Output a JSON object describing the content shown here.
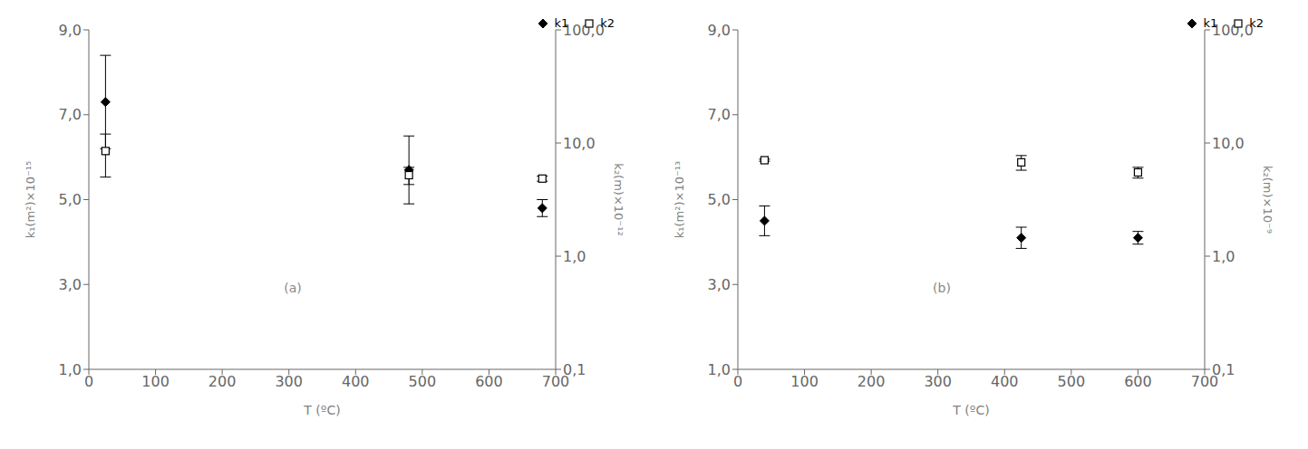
{
  "chart_data": [
    {
      "type": "scatter",
      "annotations": [
        {
          "text": "(a)"
        }
      ],
      "xlabel": "T (ºC)",
      "ylabel": "k₁(m²)×10⁻¹⁵",
      "y2label": "k₂(m)×10⁻¹²",
      "xlim": [
        0,
        700
      ],
      "xticks": [
        0,
        100,
        200,
        300,
        400,
        500,
        600,
        700
      ],
      "ylim": [
        1.0,
        9.0
      ],
      "yticks": [
        {
          "value": 1.0,
          "label": "1,0"
        },
        {
          "value": 3.0,
          "label": "3,0"
        },
        {
          "value": 5.0,
          "label": "5,0"
        },
        {
          "value": 7.0,
          "label": "7,0"
        },
        {
          "value": 9.0,
          "label": "9,0"
        }
      ],
      "y2lim": [
        0.1,
        100.0
      ],
      "y2ticks": [
        {
          "value": 0.1,
          "label": "0,1"
        },
        {
          "value": 1.0,
          "label": "1,0"
        },
        {
          "value": 10.0,
          "label": "10,0"
        },
        {
          "value": 100.0,
          "label": "100,0"
        }
      ],
      "log": "y2",
      "legend": "upper right",
      "grid": false,
      "series": [
        {
          "name": "k1",
          "color": "#000000",
          "marker": "diamond",
          "x": [
            25,
            480,
            680
          ],
          "values": [
            7.3,
            5.7,
            4.8
          ],
          "error_low": [
            1.1,
            0.8,
            0.2
          ],
          "error_high": [
            1.1,
            0.8,
            0.2
          ]
        },
        {
          "name": "k2",
          "axis": "y2",
          "color": "#000000",
          "marker": "hollow_square",
          "x": [
            25,
            480,
            680
          ],
          "values": [
            8.5,
            5.2,
            4.85
          ],
          "error_low": [
            3.5,
            0.9,
            0.25
          ],
          "error_high": [
            3.5,
            0.9,
            0.25
          ]
        }
      ]
    },
    {
      "type": "scatter",
      "annotations": [
        {
          "text": "(b)"
        }
      ],
      "xlabel": "T (ºC)",
      "ylabel": "k₁(m²)×10⁻¹³",
      "y2label": "k₂(m)×10⁻⁹",
      "xlim": [
        0,
        700
      ],
      "xticks": [
        0,
        100,
        200,
        300,
        400,
        500,
        600,
        700
      ],
      "ylim": [
        1.0,
        9.0
      ],
      "yticks": [
        {
          "value": 1.0,
          "label": "1,0"
        },
        {
          "value": 3.0,
          "label": "3,0"
        },
        {
          "value": 5.0,
          "label": "5,0"
        },
        {
          "value": 7.0,
          "label": "7,0"
        },
        {
          "value": 9.0,
          "label": "9,0"
        }
      ],
      "y2lim": [
        0.1,
        100.0
      ],
      "y2ticks": [
        {
          "value": 0.1,
          "label": "0,1"
        },
        {
          "value": 1.0,
          "label": "1,0"
        },
        {
          "value": 10.0,
          "label": "10,0"
        },
        {
          "value": 100.0,
          "label": "100,0"
        }
      ],
      "log": "y2",
      "legend": "upper right",
      "grid": false,
      "series": [
        {
          "name": "k1",
          "color": "#000000",
          "marker": "diamond",
          "x": [
            40,
            425,
            600
          ],
          "values": [
            4.5,
            4.1,
            4.1
          ],
          "error_low": [
            0.35,
            0.25,
            0.15
          ],
          "error_high": [
            0.35,
            0.25,
            0.15
          ]
        },
        {
          "name": "k2",
          "axis": "y2",
          "color": "#000000",
          "marker": "hollow_square",
          "x": [
            40,
            425,
            600
          ],
          "values": [
            7.05,
            6.75,
            5.5
          ],
          "error_low": [
            0.15,
            1.0,
            0.6
          ],
          "error_high": [
            0.15,
            1.0,
            0.6
          ]
        }
      ]
    }
  ]
}
